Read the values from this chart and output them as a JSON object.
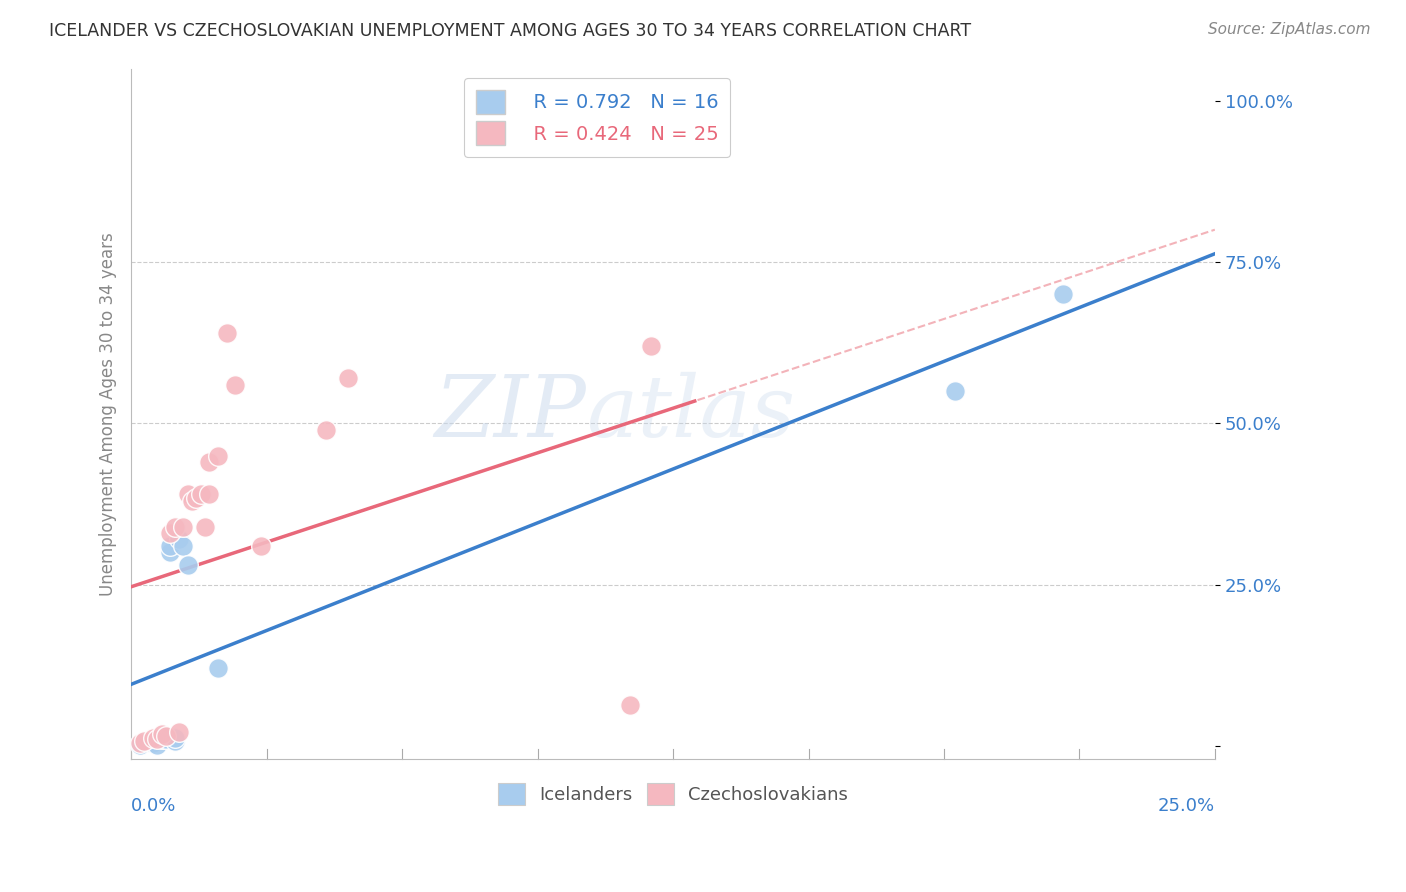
{
  "title": "ICELANDER VS CZECHOSLOVAKIAN UNEMPLOYMENT AMONG AGES 30 TO 34 YEARS CORRELATION CHART",
  "source": "Source: ZipAtlas.com",
  "ylabel": "Unemployment Among Ages 30 to 34 years",
  "ytick_labels": [
    "",
    "25.0%",
    "50.0%",
    "75.0%",
    "100.0%"
  ],
  "ytick_values": [
    0,
    0.25,
    0.5,
    0.75,
    1.0
  ],
  "xlim": [
    0,
    0.25
  ],
  "ylim": [
    -0.02,
    1.05
  ],
  "legend_icelander_R": "R = 0.792",
  "legend_icelander_N": "N = 16",
  "legend_czech_R": "R = 0.424",
  "legend_czech_N": "N = 25",
  "icelander_color": "#A8CCEE",
  "czech_color": "#F5B8C0",
  "icelander_line_color": "#3B7FCC",
  "czech_line_color": "#E8687A",
  "czech_dash_color": "#F0A0A8",
  "watermark_zip": "ZIP",
  "watermark_atlas": "atlas",
  "icelander_x": [
    0.002,
    0.004,
    0.005,
    0.006,
    0.007,
    0.008,
    0.009,
    0.009,
    0.01,
    0.01,
    0.011,
    0.012,
    0.013,
    0.02,
    0.19,
    0.215
  ],
  "icelander_y": [
    0.002,
    0.006,
    0.005,
    0.002,
    0.01,
    0.01,
    0.3,
    0.31,
    0.008,
    0.012,
    0.32,
    0.31,
    0.28,
    0.12,
    0.55,
    0.7
  ],
  "czech_x": [
    0.002,
    0.003,
    0.005,
    0.006,
    0.007,
    0.008,
    0.009,
    0.01,
    0.011,
    0.012,
    0.013,
    0.014,
    0.015,
    0.016,
    0.017,
    0.018,
    0.018,
    0.02,
    0.022,
    0.024,
    0.03,
    0.045,
    0.05,
    0.115,
    0.12
  ],
  "czech_y": [
    0.004,
    0.008,
    0.012,
    0.01,
    0.018,
    0.016,
    0.33,
    0.34,
    0.022,
    0.34,
    0.39,
    0.38,
    0.385,
    0.39,
    0.34,
    0.39,
    0.44,
    0.45,
    0.64,
    0.56,
    0.31,
    0.49,
    0.57,
    0.063,
    0.62
  ]
}
